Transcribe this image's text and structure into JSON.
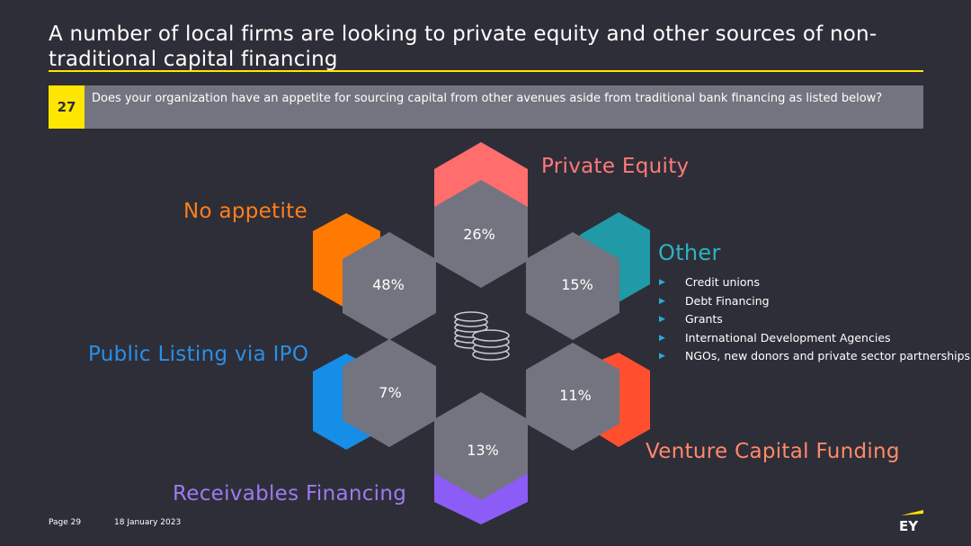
{
  "slide": {
    "title": "A number of local firms are looking to private equity and other sources of non-traditional capital financing"
  },
  "question": {
    "number": "27",
    "text": "Does your organization have an appetite for sourcing capital from other avenues aside from traditional bank financing as listed below?"
  },
  "segments": [
    {
      "key": "private-equity",
      "label": "Private Equity",
      "value": "26%",
      "color": "#ff6d6d"
    },
    {
      "key": "other",
      "label": "Other",
      "value": "15%",
      "color": "#1f9aa6"
    },
    {
      "key": "venture-capital",
      "label": "Venture Capital Funding",
      "value": "11%",
      "color": "#ff4f2e"
    },
    {
      "key": "receivables",
      "label": "Receivables Financing",
      "value": "13%",
      "color": "#8b5cf6"
    },
    {
      "key": "ipo",
      "label": "Public Listing via IPO",
      "value": "7%",
      "color": "#168de6"
    },
    {
      "key": "no-appetite",
      "label": "No appetite",
      "value": "48%",
      "color": "#ff7a00"
    }
  ],
  "label_colors": {
    "private-equity": "#ff7a7a",
    "other": "#2db3c0",
    "venture-capital": "#ff8a6b",
    "receivables": "#9d7bf0",
    "ipo": "#2a8fe5",
    "no-appetite": "#ff7f1a"
  },
  "other_items": [
    "Credit unions",
    "Debt Financing",
    "Grants",
    "International Development Agencies",
    "NGOs, new donors and private sector partnerships"
  ],
  "center_icon": "coins-stack-icon",
  "footer": {
    "page": "Page 29",
    "date": "18 January 2023",
    "logo_text": "EY"
  }
}
